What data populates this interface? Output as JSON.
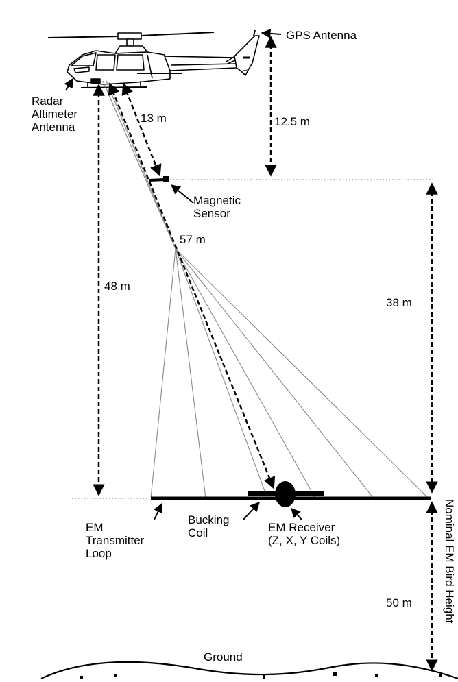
{
  "labels": {
    "gps_antenna": "GPS Antenna",
    "radar_altimeter": "Radar\nAltimeter\nAntenna",
    "dist_13": "13 m",
    "dist_12_5": "12.5 m",
    "magnetic_sensor": "Magnetic\nSensor",
    "dist_57": "57 m",
    "dist_48": "48 m",
    "dist_38": "38 m",
    "em_transmitter": "EM\nTransmitter\nLoop",
    "bucking_coil": "Bucking\nCoil",
    "em_receiver": "EM Receiver\n(Z, X, Y Coils)",
    "dist_50": "50 m",
    "nominal_height": "Nominal EM Bird Height",
    "ground": "Ground"
  },
  "colors": {
    "ink": "#000000",
    "cable": "#888888",
    "dotted": "#888888"
  }
}
